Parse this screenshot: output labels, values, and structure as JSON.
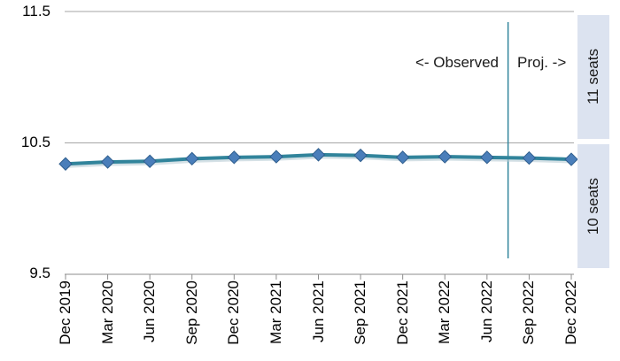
{
  "colors": {
    "line": "#31849B",
    "line_shadow": "#B9CDD6",
    "marker_fill": "#4A7EBA",
    "marker_stroke": "#2F5E8D",
    "separator": "#31849B",
    "gridline": "#A6A6A6",
    "axis": "#8C8C8C",
    "band_bg": "#DCE3F0",
    "text": "#000000"
  },
  "chart_data": {
    "type": "line",
    "title": "",
    "categories": [
      "Dec 2019",
      "Mar 2020",
      "Jun 2020",
      "Sep 2020",
      "Dec 2020",
      "Mar 2021",
      "Jun 2021",
      "Sep 2021",
      "Dec 2021",
      "Mar 2022",
      "Jun 2022",
      "Sep 2022",
      "Dec 2022"
    ],
    "values": [
      10.34,
      10.355,
      10.36,
      10.38,
      10.39,
      10.395,
      10.41,
      10.405,
      10.39,
      10.395,
      10.39,
      10.385,
      10.375
    ],
    "ylim": [
      9.5,
      11.5
    ],
    "y_ticks": [
      "11.5",
      "10.5",
      "9.5"
    ],
    "grid": true,
    "legend": "none",
    "annotations": {
      "observed_label": "<- Observed",
      "projection_label": "Proj. ->",
      "projection_start_index": 11
    },
    "right_bands": [
      {
        "label": "11 seats"
      },
      {
        "label": "10 seats"
      }
    ]
  }
}
